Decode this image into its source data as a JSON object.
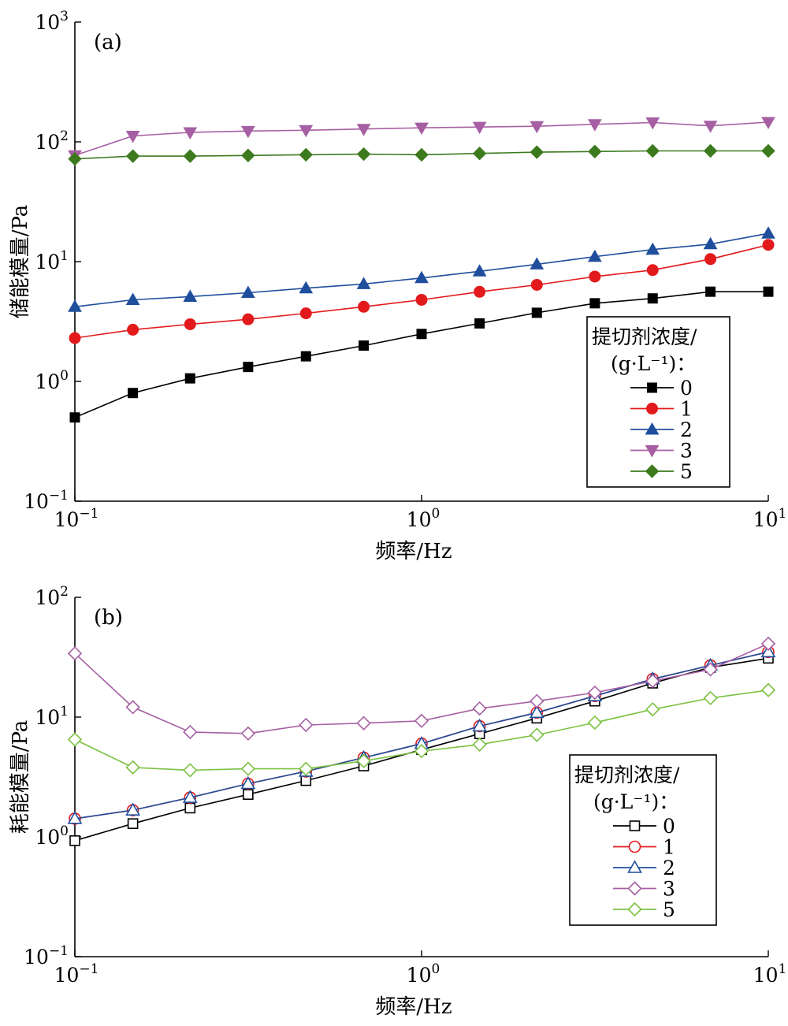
{
  "chart_data": [
    {
      "panel_label": "(a)",
      "type": "line",
      "xscale": "log",
      "yscale": "log",
      "xlabel": "频率/Hz",
      "ylabel": "储能模量/Pa",
      "xlim": [
        0.1,
        10
      ],
      "ylim": [
        0.1,
        1000
      ],
      "grid": false,
      "x_ticks": [
        {
          "base": "10",
          "exp": "−1"
        },
        {
          "base": "10",
          "exp": "0"
        },
        {
          "base": "10",
          "exp": "1"
        }
      ],
      "y_ticks": [
        {
          "base": "10",
          "exp": "−1"
        },
        {
          "base": "10",
          "exp": "0"
        },
        {
          "base": "10",
          "exp": "1"
        },
        {
          "base": "10",
          "exp": "2"
        },
        {
          "base": "10",
          "exp": "3"
        }
      ],
      "legend": {
        "position": "bottom-right",
        "title_line1": "提切剂浓度/",
        "title_line2": "(g·L⁻¹)：",
        "marker_style": "filled"
      },
      "x": [
        0.1,
        0.147,
        0.215,
        0.316,
        0.464,
        0.681,
        1.0,
        1.47,
        2.15,
        3.16,
        4.64,
        6.81,
        10.0
      ],
      "series": [
        {
          "name": "0",
          "marker": "square",
          "color": "#000000",
          "values": [
            0.5,
            0.8,
            1.06,
            1.32,
            1.62,
            1.99,
            2.49,
            3.05,
            3.74,
            4.49,
            4.93,
            5.61,
            5.61
          ]
        },
        {
          "name": "1",
          "marker": "circle",
          "color": "#e31a1c",
          "values": [
            2.3,
            2.7,
            3.0,
            3.3,
            3.7,
            4.2,
            4.8,
            5.6,
            6.4,
            7.5,
            8.5,
            10.5,
            13.8
          ]
        },
        {
          "name": "2",
          "marker": "triangle-up",
          "color": "#1f4e9c",
          "values": [
            4.2,
            4.8,
            5.1,
            5.5,
            6.0,
            6.5,
            7.3,
            8.3,
            9.5,
            11.0,
            12.6,
            14.0,
            17.2
          ]
        },
        {
          "name": "3",
          "marker": "triangle-down",
          "color": "#a65fa3",
          "values": [
            77,
            112,
            120,
            123,
            125,
            128,
            131,
            133,
            135,
            140,
            145,
            136,
            146
          ]
        },
        {
          "name": "5",
          "marker": "diamond",
          "color": "#3d7a1e",
          "values": [
            72,
            76,
            76,
            77,
            78,
            79,
            78,
            80,
            82,
            83,
            84,
            84,
            84
          ]
        }
      ]
    },
    {
      "panel_label": "(b)",
      "type": "line",
      "xscale": "log",
      "yscale": "log",
      "xlabel": "频率/Hz",
      "ylabel": "耗能模量/Pa",
      "xlim": [
        0.1,
        10
      ],
      "ylim": [
        0.1,
        100
      ],
      "grid": false,
      "x_ticks": [
        {
          "base": "10",
          "exp": "−1"
        },
        {
          "base": "10",
          "exp": "0"
        },
        {
          "base": "10",
          "exp": "1"
        }
      ],
      "y_ticks": [
        {
          "base": "10",
          "exp": "−1"
        },
        {
          "base": "10",
          "exp": "0"
        },
        {
          "base": "10",
          "exp": "1"
        },
        {
          "base": "10",
          "exp": "2"
        }
      ],
      "legend": {
        "position": "bottom-right",
        "title_line1": "提切剂浓度/",
        "title_line2": "(g·L⁻¹)：",
        "marker_style": "open"
      },
      "x": [
        0.1,
        0.147,
        0.215,
        0.316,
        0.464,
        0.681,
        1.0,
        1.47,
        2.15,
        3.16,
        4.64,
        6.81,
        10.0
      ],
      "series": [
        {
          "name": "0",
          "marker": "square",
          "color": "#000000",
          "values": [
            0.93,
            1.29,
            1.74,
            2.26,
            2.95,
            3.91,
            5.35,
            7.25,
            9.8,
            13.6,
            19.2,
            26.0,
            31.0
          ]
        },
        {
          "name": "1",
          "marker": "circle",
          "color": "#e31a1c",
          "values": [
            1.42,
            1.67,
            2.13,
            2.78,
            3.52,
            4.58,
            6.0,
            8.4,
            10.9,
            15.0,
            20.8,
            27.0,
            35.0
          ]
        },
        {
          "name": "2",
          "marker": "triangle-up",
          "color": "#1f4e9c",
          "values": [
            1.42,
            1.67,
            2.13,
            2.78,
            3.52,
            4.58,
            6.0,
            8.4,
            10.9,
            15.0,
            20.8,
            27.0,
            35.0
          ]
        },
        {
          "name": "3",
          "marker": "diamond",
          "color": "#a65fa3",
          "values": [
            34.0,
            12.1,
            7.5,
            7.3,
            8.6,
            8.9,
            9.3,
            11.8,
            13.6,
            16.0,
            20.0,
            25.0,
            41.0
          ]
        },
        {
          "name": "5",
          "marker": "diamond",
          "color": "#7cc242",
          "values": [
            6.5,
            3.8,
            3.6,
            3.7,
            3.7,
            4.3,
            5.2,
            5.9,
            7.1,
            9.0,
            11.6,
            14.4,
            16.8
          ]
        }
      ]
    }
  ]
}
